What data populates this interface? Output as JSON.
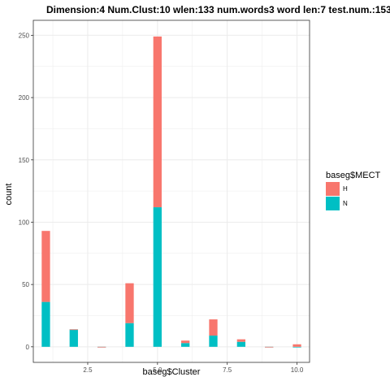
{
  "chart_data": {
    "type": "bar",
    "stacked": true,
    "title": "Dimension:4  Num.Clust:10  wlen:133  num.words3  word len:7  test.num.:153",
    "xlabel": "baseg$Cluster",
    "ylabel": "count",
    "x_ticks": [
      "2.5",
      "5.0",
      "7.5",
      "10.0"
    ],
    "x_tick_values": [
      2.5,
      5.0,
      7.5,
      10.0
    ],
    "y_ticks": [
      "0",
      "50",
      "100",
      "150",
      "200",
      "250"
    ],
    "y_tick_values": [
      0,
      50,
      100,
      150,
      200,
      250
    ],
    "xlim": [
      0.55,
      10.45
    ],
    "ylim": [
      -12.5,
      262
    ],
    "x": [
      1,
      2,
      3,
      4,
      5,
      6,
      7,
      8,
      9,
      10
    ],
    "series": [
      {
        "name": "N",
        "color": "#00BFC4",
        "values": [
          36,
          14,
          0,
          19,
          112,
          3,
          9,
          4,
          0,
          0
        ]
      },
      {
        "name": "H",
        "color": "#F8766D",
        "values": [
          57,
          0,
          0,
          32,
          137,
          2,
          13,
          2,
          0,
          2
        ]
      }
    ],
    "legend": {
      "title": "baseg$MECT",
      "position": "right",
      "entries": [
        "H",
        "N"
      ]
    },
    "grid": true,
    "panel_border": true,
    "colors": {
      "H": "#F8766D",
      "N": "#00BFC4",
      "grid_major": "#ebebeb",
      "border": "#333333"
    }
  }
}
